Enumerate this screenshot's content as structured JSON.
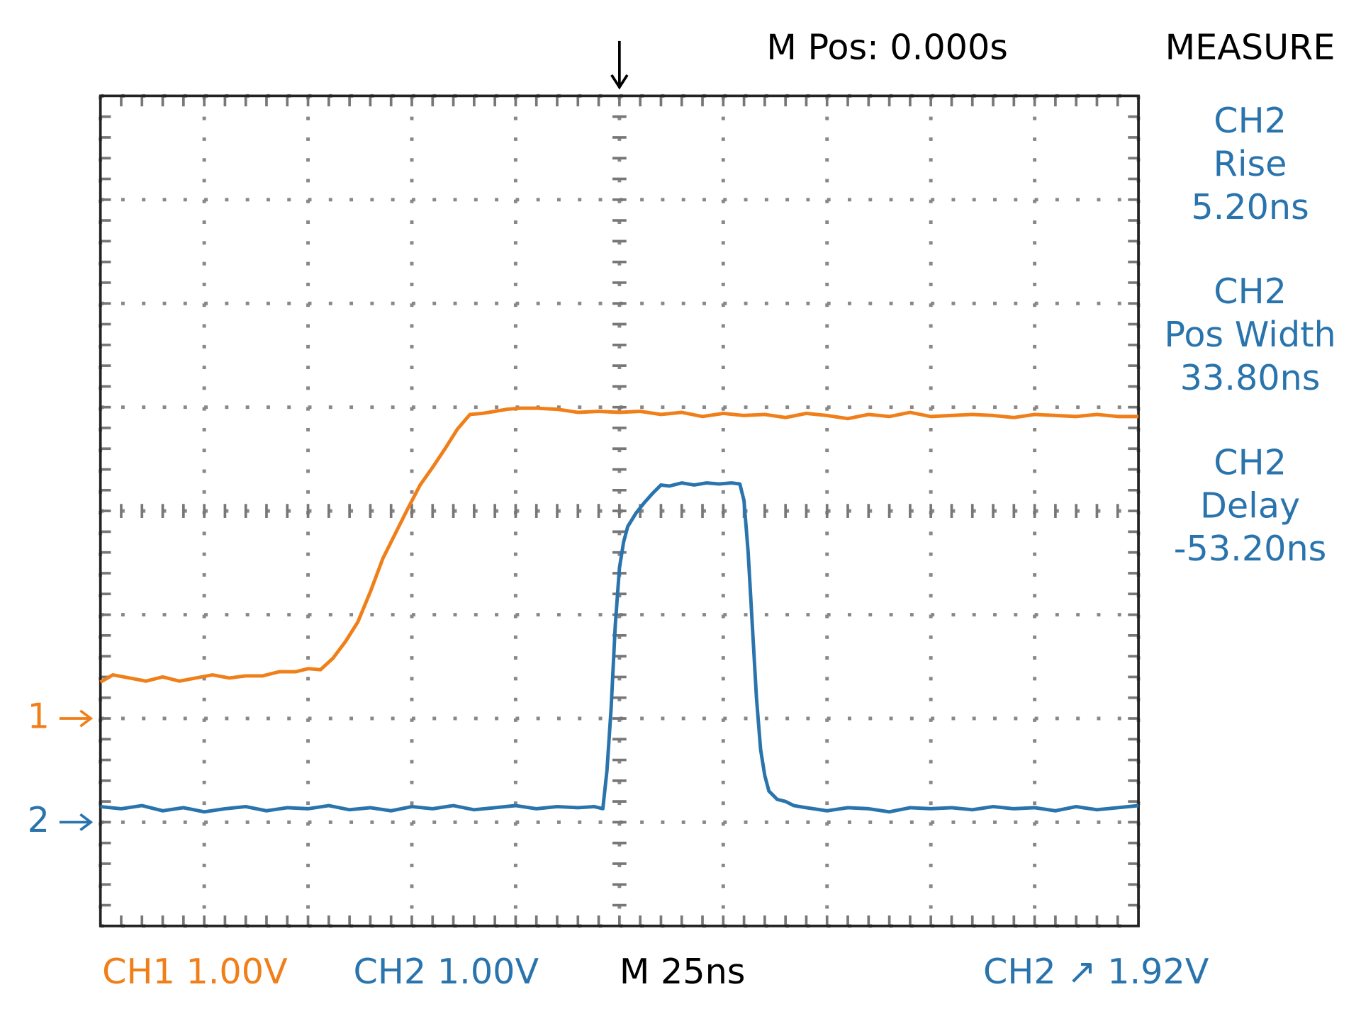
{
  "chart_data": {
    "type": "line",
    "position": "M Pos: 0.000s",
    "measure_title": "MEASURE",
    "measurements": [
      {
        "source": "CH2",
        "name": "Rise",
        "value": "5.20ns"
      },
      {
        "source": "CH2",
        "name": "Pos Width",
        "value": "33.80ns"
      },
      {
        "source": "CH2",
        "name": "Delay",
        "value": "-53.20ns"
      }
    ],
    "footer": [
      {
        "text": "CH1 1.00V",
        "color": "#f07f19"
      },
      {
        "text": "CH2 1.00V",
        "color": "#2a74ad"
      },
      {
        "text": "M 25ns",
        "color": "#000000"
      },
      {
        "text": "CH2 ↗ 1.92V",
        "color": "#2a74ad"
      }
    ],
    "xlim": [
      -125,
      125
    ],
    "ylim": [
      -4,
      4
    ],
    "xticks": [
      -125,
      -100,
      -75,
      -50,
      -25,
      0,
      25,
      50,
      75,
      100,
      125
    ],
    "yticks": [
      -4,
      -3,
      -2,
      -1,
      0,
      1,
      2,
      3,
      4
    ],
    "grid": true,
    "trigger_x": 0,
    "series": [
      {
        "name": "1",
        "color": "#f07f19",
        "level": -2,
        "x": [
          -125,
          -122,
          -118,
          -114,
          -110,
          -106,
          -102,
          -98,
          -94,
          -90,
          -86,
          -82,
          -78,
          -75,
          -72,
          -69,
          -66,
          -63,
          -60,
          -57,
          -54,
          -51,
          -48,
          -45,
          -42,
          -39,
          -36,
          -33,
          -30,
          -27,
          -24,
          -20,
          -15,
          -10,
          -5,
          0,
          5,
          10,
          15,
          20,
          25,
          30,
          35,
          40,
          45,
          50,
          55,
          60,
          65,
          70,
          75,
          80,
          85,
          90,
          95,
          100,
          105,
          110,
          115,
          120,
          125
        ],
        "values": [
          -1.65,
          -1.58,
          -1.61,
          -1.64,
          -1.6,
          -1.64,
          -1.61,
          -1.58,
          -1.61,
          -1.59,
          -1.59,
          -1.55,
          -1.55,
          -1.52,
          -1.53,
          -1.42,
          -1.26,
          -1.07,
          -0.78,
          -0.46,
          -0.22,
          0.02,
          0.25,
          0.42,
          0.6,
          0.79,
          0.93,
          0.94,
          0.96,
          0.98,
          0.99,
          0.99,
          0.98,
          0.95,
          0.96,
          0.95,
          0.96,
          0.93,
          0.95,
          0.91,
          0.94,
          0.92,
          0.93,
          0.9,
          0.94,
          0.92,
          0.89,
          0.93,
          0.91,
          0.95,
          0.91,
          0.92,
          0.93,
          0.92,
          0.9,
          0.93,
          0.92,
          0.91,
          0.93,
          0.91,
          0.91
        ]
      },
      {
        "name": "2",
        "color": "#2a74ad",
        "level": -3,
        "x": [
          -125,
          -120,
          -115,
          -110,
          -105,
          -100,
          -95,
          -90,
          -85,
          -80,
          -75,
          -70,
          -65,
          -60,
          -55,
          -50,
          -45,
          -40,
          -35,
          -30,
          -25,
          -20,
          -15,
          -10,
          -6,
          -4,
          -3,
          -2,
          -1,
          0,
          1,
          2,
          4,
          6,
          8,
          10,
          12,
          15,
          18,
          21,
          24,
          27,
          29,
          30,
          31,
          32,
          33,
          34,
          35,
          36,
          38,
          40,
          42,
          45,
          50,
          55,
          60,
          65,
          70,
          75,
          80,
          85,
          90,
          95,
          100,
          105,
          110,
          115,
          120,
          125
        ],
        "values": [
          -2.85,
          -2.87,
          -2.84,
          -2.89,
          -2.86,
          -2.9,
          -2.87,
          -2.85,
          -2.89,
          -2.86,
          -2.87,
          -2.84,
          -2.88,
          -2.86,
          -2.89,
          -2.85,
          -2.87,
          -2.84,
          -2.88,
          -2.86,
          -2.84,
          -2.87,
          -2.85,
          -2.86,
          -2.85,
          -2.87,
          -2.5,
          -1.9,
          -1.1,
          -0.55,
          -0.3,
          -0.15,
          -0.02,
          0.08,
          0.17,
          0.25,
          0.24,
          0.27,
          0.25,
          0.27,
          0.26,
          0.27,
          0.26,
          0.1,
          -0.4,
          -1.1,
          -1.8,
          -2.3,
          -2.55,
          -2.7,
          -2.78,
          -2.8,
          -2.84,
          -2.86,
          -2.89,
          -2.86,
          -2.87,
          -2.9,
          -2.86,
          -2.87,
          -2.86,
          -2.88,
          -2.85,
          -2.87,
          -2.86,
          -2.89,
          -2.85,
          -2.88,
          -2.86,
          -2.84
        ]
      }
    ]
  }
}
